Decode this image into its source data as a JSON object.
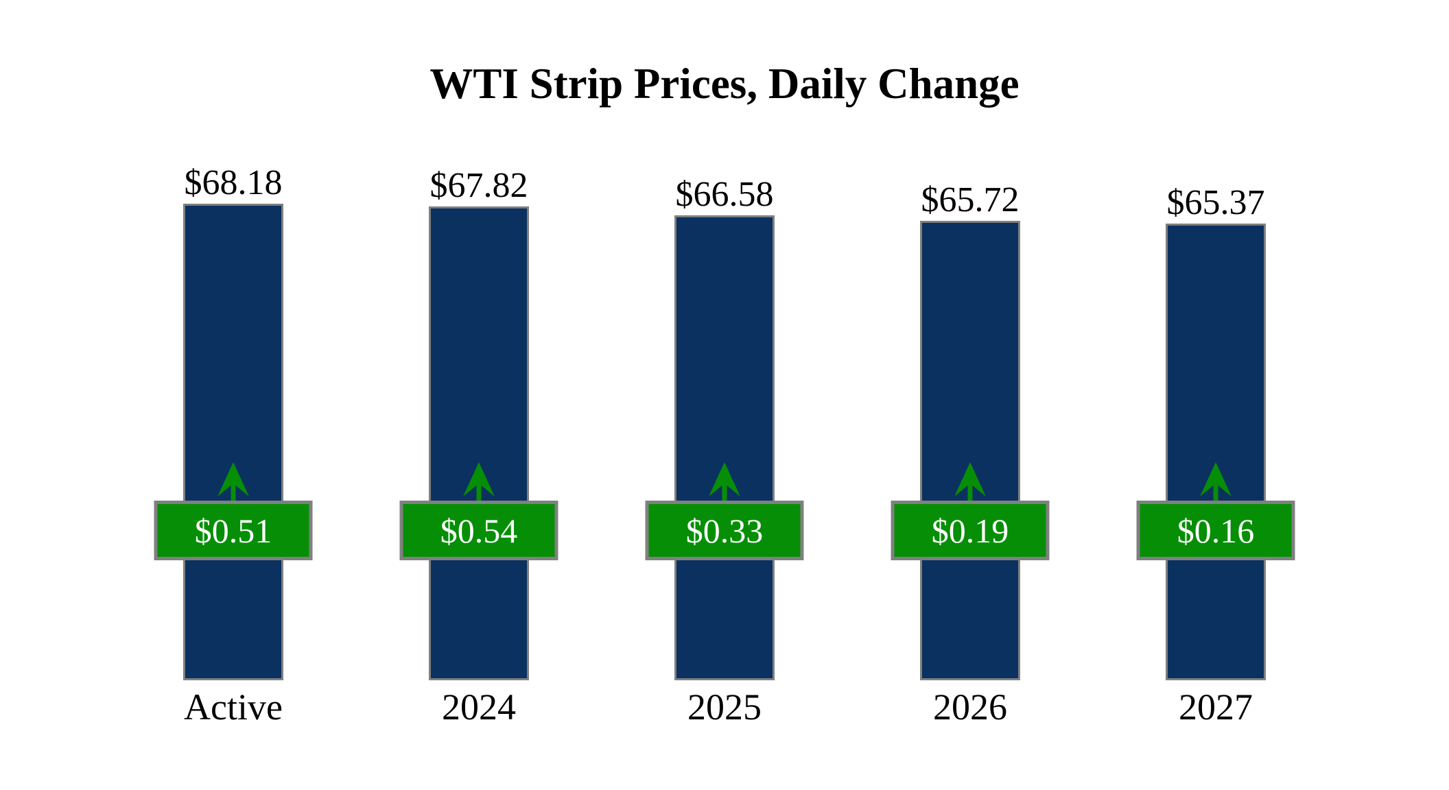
{
  "title": "WTI Strip Prices, Daily Change",
  "chart_data": {
    "type": "bar",
    "title": "WTI Strip Prices, Daily Change",
    "categories": [
      "Active",
      "2024",
      "2025",
      "2026",
      "2027"
    ],
    "series": [
      {
        "name": "Strip Price ($/bbl)",
        "values": [
          68.18,
          67.82,
          66.58,
          65.72,
          65.37
        ]
      },
      {
        "name": "Daily Change ($)",
        "values": [
          0.51,
          0.54,
          0.33,
          0.19,
          0.16
        ]
      }
    ],
    "price_labels": [
      "$68.18",
      "$67.82",
      "$66.58",
      "$65.72",
      "$65.37"
    ],
    "change_labels": [
      "$0.51",
      "$0.54",
      "$0.33",
      "$0.19",
      "$0.16"
    ],
    "change_directions": [
      "up",
      "up",
      "up",
      "up",
      "up"
    ],
    "xlabel": "",
    "ylabel": "",
    "ylim": [
      0,
      68.8
    ],
    "grid": false,
    "legend_position": "none"
  },
  "icons": {
    "up_arrow": "up-arrow-icon"
  },
  "colors": {
    "background": "#ffffff",
    "text": "#000000",
    "bar": "#0a315f",
    "bar_border": "#808080",
    "change_box": "#068f06",
    "change_box_border": "#808080",
    "change_text": "#ffffff",
    "arrow": "#068f06"
  }
}
